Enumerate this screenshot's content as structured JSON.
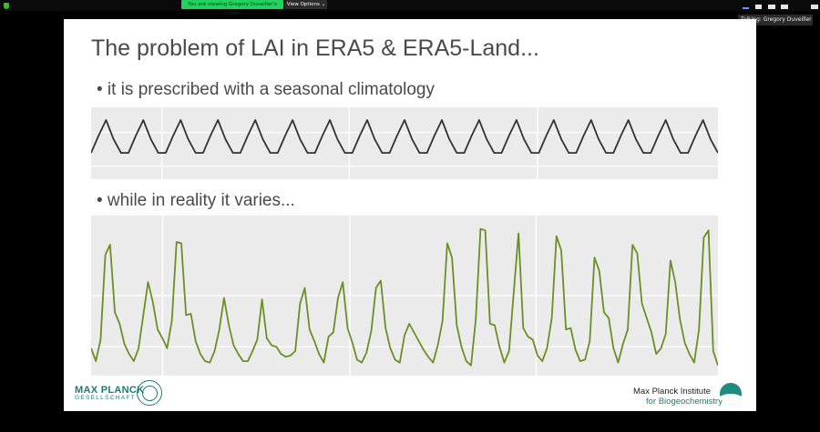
{
  "zoom_bar": {
    "sharing_banner": "You are viewing Gregory Duveiller's screen",
    "view_options": "View Options ⌄",
    "talking": "Talking: Gregory Duveiller",
    "icons": [
      "shield-icon",
      "layout-icon"
    ]
  },
  "slide": {
    "title": "The problem of LAI in ERA5 & ERA5-Land...",
    "bullet1": "• it is prescribed with a seasonal climatology",
    "bullet2": "• while in reality it varies...",
    "logo_left_name": "MAX PLANCK",
    "logo_left_sub": "GESELLSCHAFT",
    "logo_right_name": "Max Planck Institute",
    "logo_right_sub": "for Biogeochemistry"
  },
  "colors": {
    "climatology_line": "#333333",
    "reality_line": "#6a8f23",
    "panel_bg": "#ebebeb",
    "zoom_green": "#23d160",
    "mpg_teal": "#1e7d6f"
  },
  "chart_data": [
    {
      "type": "line",
      "series": [
        {
          "name": "",
          "values": [
            0.05,
            0.55,
            1,
            0.45,
            0.05,
            0.05,
            0.55,
            1,
            0.45,
            0.05,
            0.05,
            0.55,
            1,
            0.45,
            0.05,
            0.05,
            0.55,
            1,
            0.45,
            0.05,
            0.05,
            0.55,
            1,
            0.45,
            0.05,
            0.05,
            0.55,
            1,
            0.45,
            0.05,
            0.05,
            0.55,
            1,
            0.45,
            0.05,
            0.05,
            0.55,
            1,
            0.45,
            0.05,
            0.05,
            0.55,
            1,
            0.45,
            0.05,
            0.05,
            0.55,
            1,
            0.45,
            0.05,
            0.05,
            0.55,
            1,
            0.45,
            0.05,
            0.05,
            0.55,
            1,
            0.45,
            0.05,
            0.05,
            0.55,
            1,
            0.45,
            0.05,
            0.05,
            0.55,
            1,
            0.45,
            0.05,
            0.05,
            0.55,
            1,
            0.45,
            0.05,
            0.05,
            0.55,
            1,
            0.45,
            0.05,
            0.05,
            0.55,
            1,
            0.45,
            0.05
          ]
        }
      ],
      "ylim": [
        0,
        1
      ],
      "grid": true
    },
    {
      "type": "line",
      "series": [
        {
          "name": "",
          "values": [
            0.14,
            0.05,
            0.2,
            0.79,
            0.86,
            0.39,
            0.31,
            0.17,
            0.1,
            0.05,
            0.14,
            0.37,
            0.6,
            0.46,
            0.27,
            0.21,
            0.14,
            0.33,
            0.88,
            0.87,
            0.37,
            0.38,
            0.19,
            0.1,
            0.05,
            0.04,
            0.12,
            0.27,
            0.49,
            0.3,
            0.16,
            0.1,
            0.05,
            0.05,
            0.12,
            0.2,
            0.48,
            0.21,
            0.16,
            0.15,
            0.1,
            0.08,
            0.09,
            0.12,
            0.45,
            0.56,
            0.27,
            0.19,
            0.1,
            0.04,
            0.22,
            0.25,
            0.49,
            0.6,
            0.28,
            0.18,
            0.06,
            0.04,
            0.11,
            0.26,
            0.56,
            0.61,
            0.28,
            0.14,
            0.06,
            0.04,
            0.23,
            0.31,
            0.25,
            0.19,
            0.13,
            0.08,
            0.04,
            0.16,
            0.33,
            0.87,
            0.77,
            0.3,
            0.15,
            0.05,
            0.02,
            0.34,
            0.97,
            0.96,
            0.31,
            0.3,
            0.15,
            0.04,
            0.12,
            0.53,
            0.94,
            0.28,
            0.22,
            0.2,
            0.09,
            0.05,
            0.14,
            0.35,
            0.92,
            0.82,
            0.27,
            0.28,
            0.13,
            0.05,
            0.06,
            0.19,
            0.77,
            0.68,
            0.39,
            0.35,
            0.14,
            0.04,
            0.17,
            0.27,
            0.86,
            0.8,
            0.45,
            0.35,
            0.25,
            0.1,
            0.14,
            0.24,
            0.75,
            0.6,
            0.34,
            0.18,
            0.1,
            0.04,
            0.27,
            0.91,
            0.96,
            0.12,
            0.02
          ]
        }
      ],
      "ylim": [
        0,
        1
      ],
      "grid": true
    }
  ]
}
